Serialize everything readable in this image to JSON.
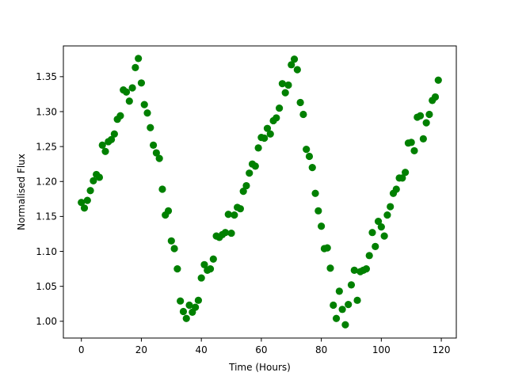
{
  "chart_data": {
    "type": "scatter",
    "title": "",
    "xlabel": "Time (Hours)",
    "ylabel": "Normalised Flux",
    "xlim": [
      -6,
      125
    ],
    "ylim": [
      0.976,
      1.394
    ],
    "x_ticks": [
      0,
      20,
      40,
      60,
      80,
      100,
      120
    ],
    "y_ticks": [
      1.0,
      1.05,
      1.1,
      1.15,
      1.2,
      1.25,
      1.3,
      1.35
    ],
    "x_tick_labels": [
      "0",
      "20",
      "40",
      "60",
      "80",
      "100",
      "120"
    ],
    "y_tick_labels": [
      "1.00",
      "1.05",
      "1.10",
      "1.15",
      "1.20",
      "1.25",
      "1.30",
      "1.35"
    ],
    "grid": false,
    "legend": "none",
    "marker_color": "#008000",
    "series": [
      {
        "x": [
          0,
          1,
          2,
          3,
          4,
          5,
          6,
          7,
          8,
          9,
          10,
          11,
          12,
          13,
          14,
          15,
          16,
          17,
          18,
          19,
          20,
          21,
          22,
          23,
          24,
          25,
          26,
          27,
          28,
          29,
          30,
          31,
          32,
          33,
          34,
          35,
          36,
          37,
          38,
          39,
          40,
          41,
          42,
          43,
          44,
          45,
          46,
          47,
          48,
          49,
          50,
          51,
          52,
          53,
          54,
          55,
          56,
          57,
          58,
          59,
          60,
          61,
          62,
          63,
          64,
          65,
          66,
          67,
          68,
          69,
          70,
          71,
          72,
          73,
          74,
          75,
          76,
          77,
          78,
          79,
          80,
          81,
          82,
          83,
          84,
          85,
          86,
          87,
          88,
          89,
          90,
          91,
          92,
          93,
          94,
          95,
          96,
          97,
          98,
          99,
          100,
          101,
          102,
          103,
          104,
          105,
          106,
          107,
          108,
          109,
          110,
          111,
          112,
          113,
          114,
          115,
          116,
          117,
          118,
          119
        ],
        "y": [
          1.17,
          1.162,
          1.173,
          1.187,
          1.201,
          1.21,
          1.206,
          1.252,
          1.243,
          1.257,
          1.26,
          1.268,
          1.289,
          1.294,
          1.331,
          1.328,
          1.315,
          1.334,
          1.363,
          1.376,
          1.341,
          1.31,
          1.298,
          1.277,
          1.252,
          1.241,
          1.233,
          1.189,
          1.152,
          1.158,
          1.115,
          1.104,
          1.075,
          1.029,
          1.014,
          1.004,
          1.023,
          1.013,
          1.02,
          1.03,
          1.062,
          1.081,
          1.073,
          1.075,
          1.089,
          1.122,
          1.12,
          1.124,
          1.127,
          1.153,
          1.126,
          1.152,
          1.163,
          1.161,
          1.186,
          1.194,
          1.212,
          1.225,
          1.222,
          1.248,
          1.263,
          1.262,
          1.276,
          1.268,
          1.287,
          1.291,
          1.305,
          1.34,
          1.327,
          1.338,
          1.367,
          1.375,
          1.36,
          1.313,
          1.296,
          1.246,
          1.236,
          1.22,
          1.183,
          1.158,
          1.136,
          1.104,
          1.105,
          1.076,
          1.023,
          1.004,
          1.043,
          1.017,
          0.995,
          1.024,
          1.052,
          1.073,
          1.03,
          1.071,
          1.073,
          1.075,
          1.094,
          1.127,
          1.107,
          1.143,
          1.135,
          1.122,
          1.152,
          1.164,
          1.183,
          1.189,
          1.205,
          1.205,
          1.213,
          1.255,
          1.256,
          1.244,
          1.292,
          1.294,
          1.261,
          1.284,
          1.296,
          1.316,
          1.321,
          1.345
        ]
      }
    ]
  }
}
